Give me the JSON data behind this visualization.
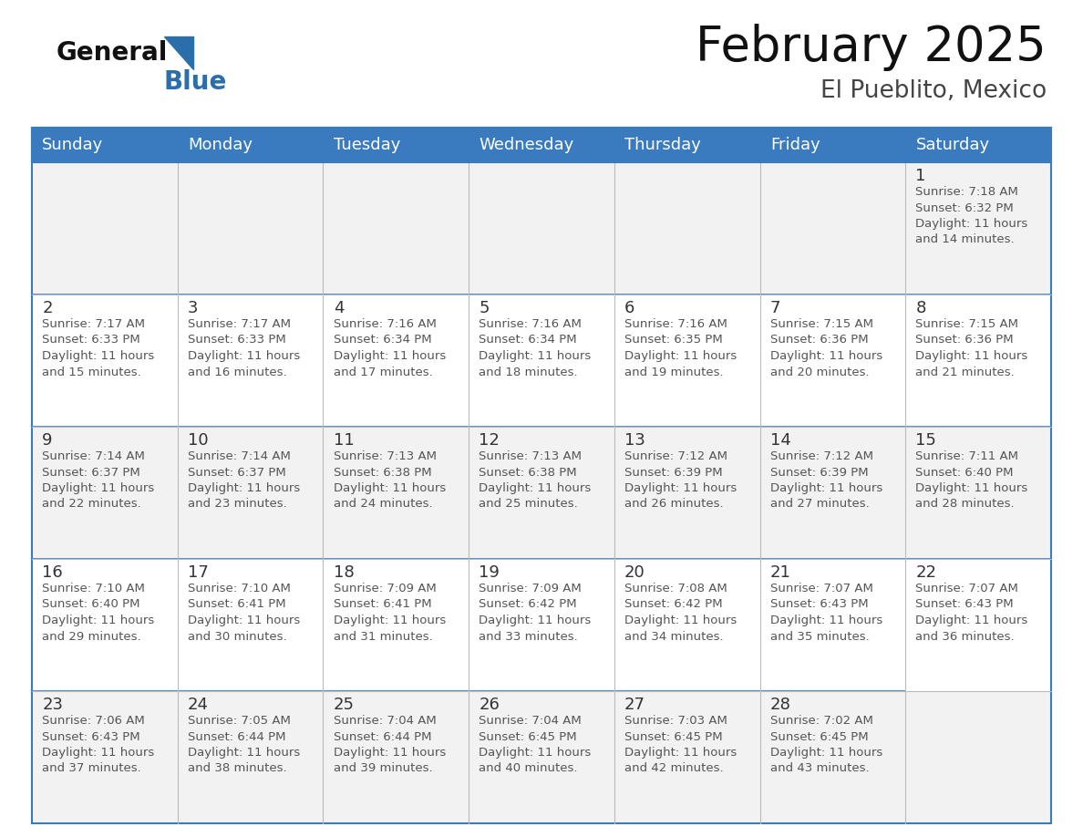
{
  "title": "February 2025",
  "subtitle": "El Pueblito, Mexico",
  "header_color": "#3a7abf",
  "header_text_color": "#ffffff",
  "day_names": [
    "Sunday",
    "Monday",
    "Tuesday",
    "Wednesday",
    "Thursday",
    "Friday",
    "Saturday"
  ],
  "bg_color": "#ffffff",
  "row0_color": "#f2f2f2",
  "row1_color": "#ffffff",
  "cell_text_color": "#555555",
  "day_num_color": "#333333",
  "border_color": "#3a7abf",
  "grid_line_color": "#bbbbbb",
  "calendar_data": [
    [
      null,
      null,
      null,
      null,
      null,
      null,
      {
        "day": 1,
        "sunrise": "7:18 AM",
        "sunset": "6:32 PM",
        "daylight": "11 hours\nand 14 minutes."
      }
    ],
    [
      {
        "day": 2,
        "sunrise": "7:17 AM",
        "sunset": "6:33 PM",
        "daylight": "11 hours\nand 15 minutes."
      },
      {
        "day": 3,
        "sunrise": "7:17 AM",
        "sunset": "6:33 PM",
        "daylight": "11 hours\nand 16 minutes."
      },
      {
        "day": 4,
        "sunrise": "7:16 AM",
        "sunset": "6:34 PM",
        "daylight": "11 hours\nand 17 minutes."
      },
      {
        "day": 5,
        "sunrise": "7:16 AM",
        "sunset": "6:34 PM",
        "daylight": "11 hours\nand 18 minutes."
      },
      {
        "day": 6,
        "sunrise": "7:16 AM",
        "sunset": "6:35 PM",
        "daylight": "11 hours\nand 19 minutes."
      },
      {
        "day": 7,
        "sunrise": "7:15 AM",
        "sunset": "6:36 PM",
        "daylight": "11 hours\nand 20 minutes."
      },
      {
        "day": 8,
        "sunrise": "7:15 AM",
        "sunset": "6:36 PM",
        "daylight": "11 hours\nand 21 minutes."
      }
    ],
    [
      {
        "day": 9,
        "sunrise": "7:14 AM",
        "sunset": "6:37 PM",
        "daylight": "11 hours\nand 22 minutes."
      },
      {
        "day": 10,
        "sunrise": "7:14 AM",
        "sunset": "6:37 PM",
        "daylight": "11 hours\nand 23 minutes."
      },
      {
        "day": 11,
        "sunrise": "7:13 AM",
        "sunset": "6:38 PM",
        "daylight": "11 hours\nand 24 minutes."
      },
      {
        "day": 12,
        "sunrise": "7:13 AM",
        "sunset": "6:38 PM",
        "daylight": "11 hours\nand 25 minutes."
      },
      {
        "day": 13,
        "sunrise": "7:12 AM",
        "sunset": "6:39 PM",
        "daylight": "11 hours\nand 26 minutes."
      },
      {
        "day": 14,
        "sunrise": "7:12 AM",
        "sunset": "6:39 PM",
        "daylight": "11 hours\nand 27 minutes."
      },
      {
        "day": 15,
        "sunrise": "7:11 AM",
        "sunset": "6:40 PM",
        "daylight": "11 hours\nand 28 minutes."
      }
    ],
    [
      {
        "day": 16,
        "sunrise": "7:10 AM",
        "sunset": "6:40 PM",
        "daylight": "11 hours\nand 29 minutes."
      },
      {
        "day": 17,
        "sunrise": "7:10 AM",
        "sunset": "6:41 PM",
        "daylight": "11 hours\nand 30 minutes."
      },
      {
        "day": 18,
        "sunrise": "7:09 AM",
        "sunset": "6:41 PM",
        "daylight": "11 hours\nand 31 minutes."
      },
      {
        "day": 19,
        "sunrise": "7:09 AM",
        "sunset": "6:42 PM",
        "daylight": "11 hours\nand 33 minutes."
      },
      {
        "day": 20,
        "sunrise": "7:08 AM",
        "sunset": "6:42 PM",
        "daylight": "11 hours\nand 34 minutes."
      },
      {
        "day": 21,
        "sunrise": "7:07 AM",
        "sunset": "6:43 PM",
        "daylight": "11 hours\nand 35 minutes."
      },
      {
        "day": 22,
        "sunrise": "7:07 AM",
        "sunset": "6:43 PM",
        "daylight": "11 hours\nand 36 minutes."
      }
    ],
    [
      {
        "day": 23,
        "sunrise": "7:06 AM",
        "sunset": "6:43 PM",
        "daylight": "11 hours\nand 37 minutes."
      },
      {
        "day": 24,
        "sunrise": "7:05 AM",
        "sunset": "6:44 PM",
        "daylight": "11 hours\nand 38 minutes."
      },
      {
        "day": 25,
        "sunrise": "7:04 AM",
        "sunset": "6:44 PM",
        "daylight": "11 hours\nand 39 minutes."
      },
      {
        "day": 26,
        "sunrise": "7:04 AM",
        "sunset": "6:45 PM",
        "daylight": "11 hours\nand 40 minutes."
      },
      {
        "day": 27,
        "sunrise": "7:03 AM",
        "sunset": "6:45 PM",
        "daylight": "11 hours\nand 42 minutes."
      },
      {
        "day": 28,
        "sunrise": "7:02 AM",
        "sunset": "6:45 PM",
        "daylight": "11 hours\nand 43 minutes."
      },
      null
    ]
  ],
  "logo_general_color": "#111111",
  "logo_blue_color": "#2a6faa",
  "title_fontsize": 38,
  "subtitle_fontsize": 19,
  "header_fontsize": 13,
  "day_num_fontsize": 13,
  "cell_fontsize": 9.5
}
